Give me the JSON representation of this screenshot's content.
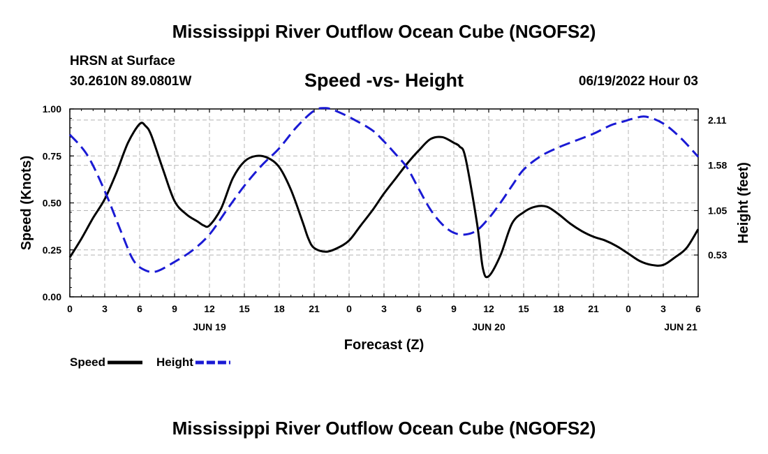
{
  "header": {
    "title": "Mississippi River Outflow Ocean Cube (NGOFS2)",
    "station": "HRSN at Surface",
    "coordinates": "30.2610N  89.0801W",
    "subtitle": "Speed -vs- Height",
    "datetime": "06/19/2022 Hour 03"
  },
  "footer": {
    "title": "Mississippi River Outflow Ocean Cube (NGOFS2)"
  },
  "chart_data": {
    "type": "line",
    "title": "Speed -vs- Height",
    "xlabel": "Forecast (Z)",
    "ylabel": "Speed (Knots)",
    "y2label": "Height (feet)",
    "x_range": [
      0,
      54
    ],
    "ylim": [
      0,
      1.0
    ],
    "y2lim": [
      0.04,
      2.24
    ],
    "x_ticks": [
      0,
      3,
      6,
      9,
      12,
      15,
      18,
      21,
      24,
      27,
      30,
      33,
      36,
      39,
      42,
      45,
      48,
      51,
      54
    ],
    "x_tick_labels": [
      "0",
      "3",
      "6",
      "9",
      "12",
      "15",
      "18",
      "21",
      "0",
      "3",
      "6",
      "9",
      "12",
      "15",
      "18",
      "21",
      "0",
      "3",
      "6"
    ],
    "day_labels": [
      {
        "x": 12,
        "label": "JUN 19"
      },
      {
        "x": 36,
        "label": "JUN 20"
      },
      {
        "x": 52.5,
        "label": "JUN 21"
      }
    ],
    "y_ticks": [
      0,
      0.25,
      0.5,
      0.75,
      1.0
    ],
    "y_tick_labels": [
      "0.00",
      "0.25",
      "0.50",
      "0.75",
      "1.00"
    ],
    "y2_ticks": [
      0.53,
      1.05,
      1.58,
      2.11
    ],
    "y2_tick_labels": [
      "0.53",
      "1.05",
      "1.58",
      "2.11"
    ],
    "grid": true,
    "series": [
      {
        "name": "Speed",
        "axis": "left",
        "color": "#000000",
        "dash": "solid",
        "x": [
          0,
          1,
          2,
          3,
          4,
          5,
          6,
          6.5,
          7,
          8,
          9,
          10,
          11,
          11.5,
          12,
          13,
          14,
          15,
          16,
          17,
          18,
          19,
          20,
          20.5,
          21,
          22,
          23,
          24,
          25,
          26,
          27,
          28,
          29,
          30,
          31,
          32,
          33,
          33.5,
          34,
          35,
          35.5,
          36,
          37,
          38,
          39,
          40,
          41,
          42,
          43,
          44,
          45,
          46,
          47,
          48,
          49,
          50,
          51,
          52,
          53,
          54
        ],
        "values": [
          0.21,
          0.31,
          0.42,
          0.52,
          0.66,
          0.82,
          0.92,
          0.91,
          0.86,
          0.68,
          0.51,
          0.44,
          0.4,
          0.38,
          0.38,
          0.47,
          0.63,
          0.72,
          0.75,
          0.74,
          0.69,
          0.57,
          0.4,
          0.31,
          0.26,
          0.24,
          0.26,
          0.3,
          0.38,
          0.46,
          0.55,
          0.63,
          0.71,
          0.78,
          0.84,
          0.85,
          0.82,
          0.8,
          0.74,
          0.39,
          0.15,
          0.11,
          0.22,
          0.39,
          0.45,
          0.48,
          0.48,
          0.44,
          0.39,
          0.35,
          0.32,
          0.3,
          0.27,
          0.23,
          0.19,
          0.17,
          0.17,
          0.21,
          0.26,
          0.36
        ]
      },
      {
        "name": "Height",
        "axis": "right",
        "color": "#1a1ad4",
        "dash": "dashed",
        "x": [
          0,
          1.5,
          3,
          4.5,
          5.5,
          6.5,
          7.5,
          9,
          10.5,
          12,
          13.5,
          15,
          16.5,
          18,
          19.5,
          21,
          22,
          23,
          24.5,
          26,
          27,
          28,
          29,
          30,
          31,
          32,
          33,
          34,
          35,
          36,
          37,
          38,
          39,
          40.5,
          42,
          43.5,
          45,
          46.5,
          47.5,
          48.5,
          49.5,
          51,
          52.5,
          54
        ],
        "values": [
          1.94,
          1.7,
          1.28,
          0.77,
          0.46,
          0.35,
          0.34,
          0.45,
          0.58,
          0.77,
          1.06,
          1.34,
          1.58,
          1.78,
          2.03,
          2.22,
          2.25,
          2.21,
          2.11,
          1.99,
          1.86,
          1.71,
          1.55,
          1.3,
          1.06,
          0.89,
          0.79,
          0.77,
          0.82,
          0.96,
          1.14,
          1.34,
          1.53,
          1.69,
          1.79,
          1.87,
          1.95,
          2.05,
          2.09,
          2.13,
          2.15,
          2.07,
          1.9,
          1.68
        ]
      }
    ],
    "legend": [
      {
        "label": "Speed",
        "color": "#000000",
        "dash": "solid"
      },
      {
        "label": "Height",
        "color": "#1a1ad4",
        "dash": "dashed"
      }
    ],
    "legend_position": "bottom-left"
  }
}
